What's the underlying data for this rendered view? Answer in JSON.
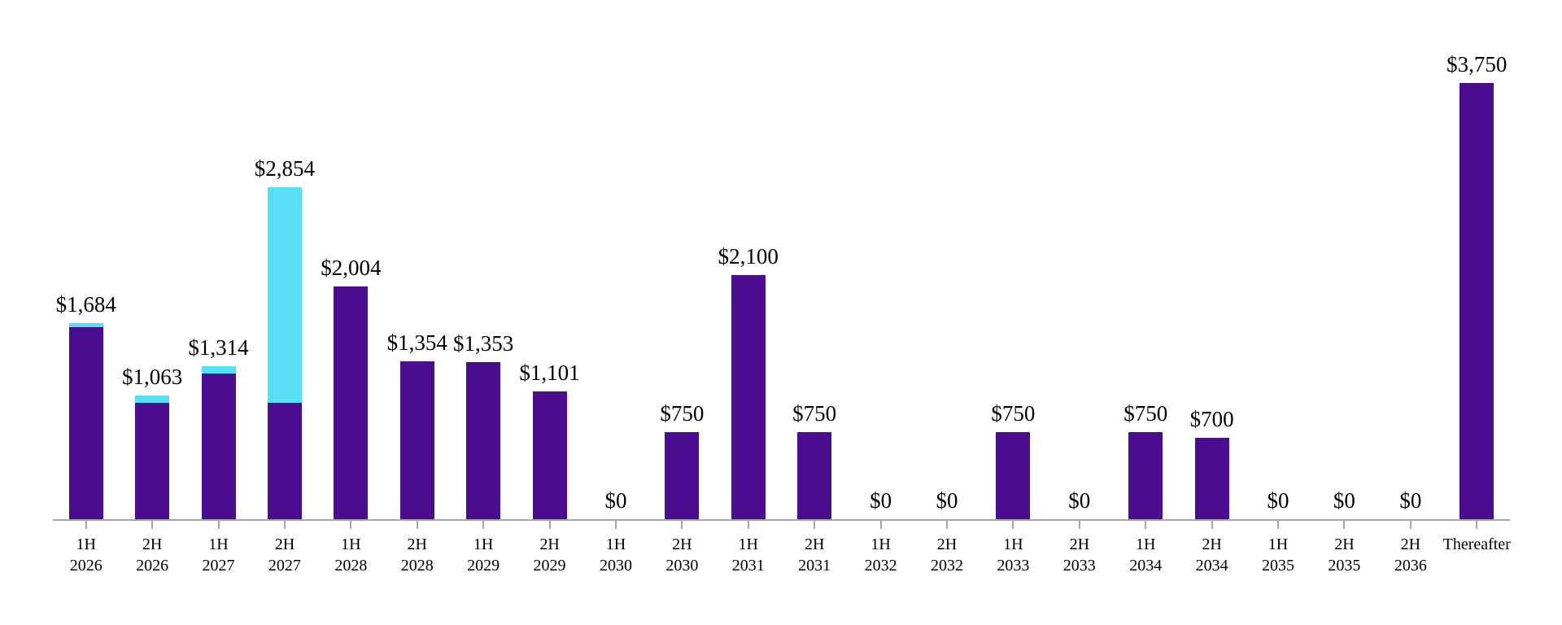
{
  "chart_data": {
    "type": "bar",
    "stacked": true,
    "title": "",
    "xlabel": "",
    "ylabel": "",
    "ylim": [
      0,
      3750
    ],
    "grid": false,
    "legend": "none",
    "categories": [
      "1H 2026",
      "2H 2026",
      "1H 2027",
      "2H 2027",
      "1H 2028",
      "2H 2028",
      "1H 2029",
      "2H 2029",
      "1H 2030",
      "2H 2030",
      "1H 2031",
      "2H 2031",
      "1H 2032",
      "2H 2032",
      "1H 2033",
      "2H 2033",
      "1H 2034",
      "2H 2034",
      "1H 2035",
      "2H 2035",
      "2H 2036",
      "Thereafter"
    ],
    "series": [
      {
        "name": "purple-segment",
        "color": "#4B0D90",
        "values": [
          1650,
          1000,
          1250,
          1000,
          2004,
          1354,
          1353,
          1101,
          0,
          750,
          2100,
          750,
          0,
          0,
          750,
          0,
          750,
          700,
          0,
          0,
          0,
          3750
        ]
      },
      {
        "name": "cyan-segment",
        "color": "#58DEF7",
        "values": [
          34,
          63,
          64,
          1854,
          0,
          0,
          0,
          0,
          0,
          0,
          0,
          0,
          0,
          0,
          0,
          0,
          0,
          0,
          0,
          0,
          0,
          0
        ]
      }
    ],
    "totals": [
      1684,
      1063,
      1314,
      2854,
      2004,
      1354,
      1353,
      1101,
      0,
      750,
      2100,
      750,
      0,
      0,
      750,
      0,
      750,
      700,
      0,
      0,
      0,
      3750
    ],
    "data_labels": [
      "$1,684",
      "$1,063",
      "$1,314",
      "$2,854",
      "$2,004",
      "$1,354",
      "$1,353",
      "$1,101",
      "$0",
      "$750",
      "$2,100",
      "$750",
      "$0",
      "$0",
      "$750",
      "$0",
      "$750",
      "$700",
      "$0",
      "$0",
      "$0",
      "$3,750"
    ]
  },
  "colors": {
    "axis_line": "#A6A6A6",
    "tick": "#A6A6A6",
    "label_text": "#000000"
  }
}
